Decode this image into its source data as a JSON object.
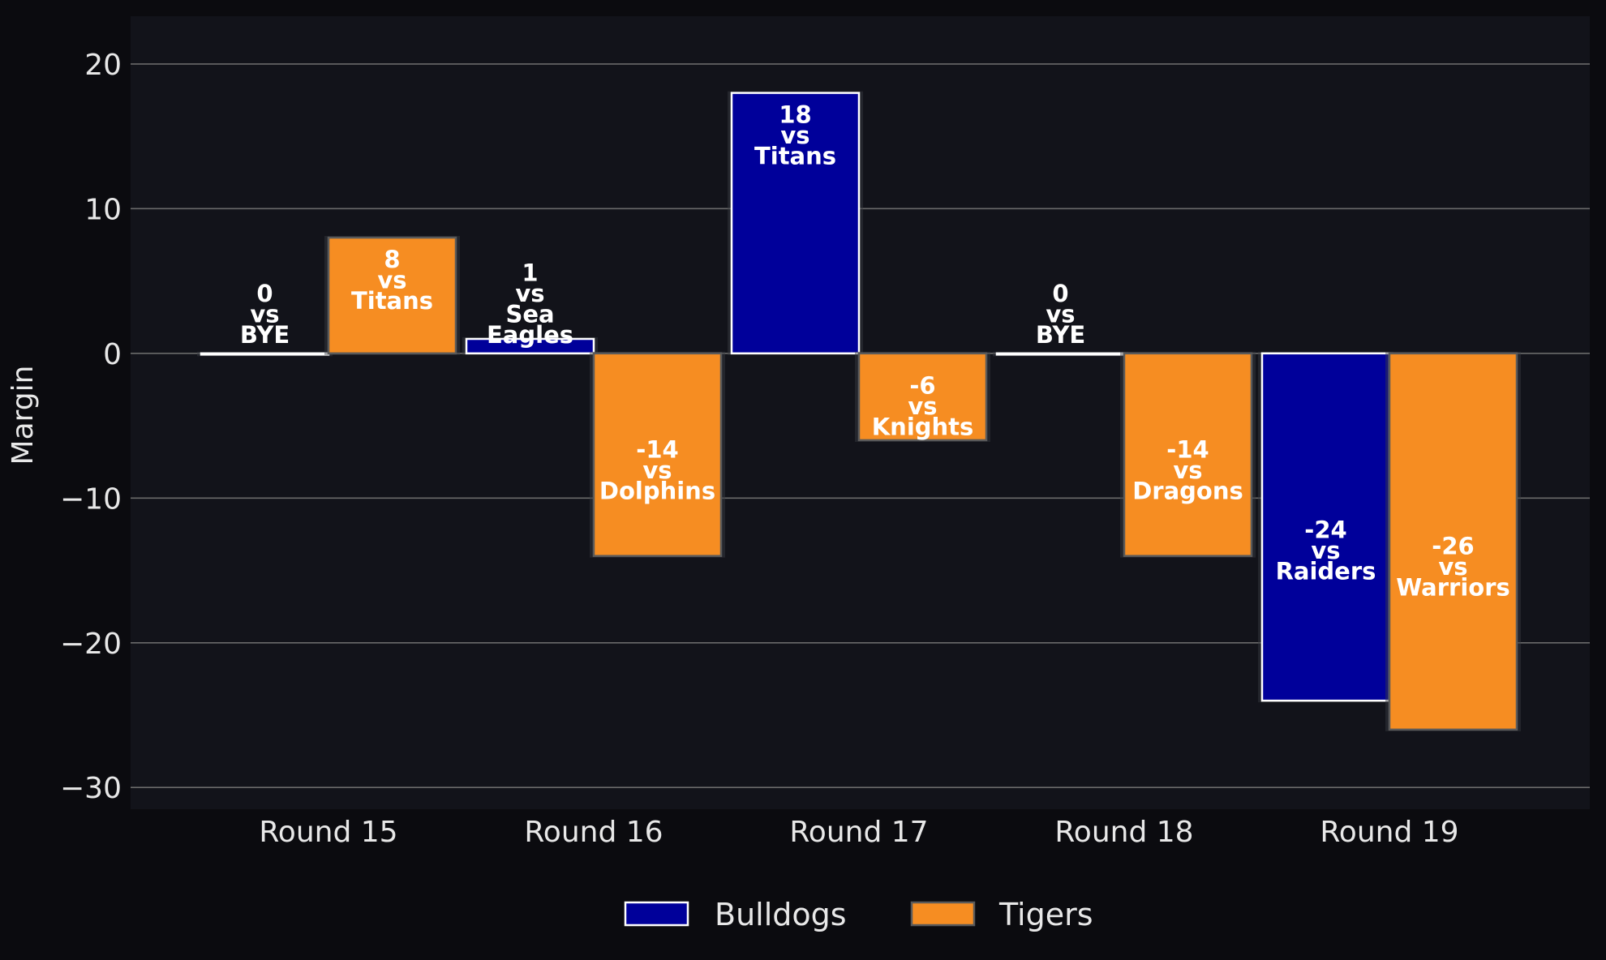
{
  "chart_data": {
    "type": "bar",
    "categories": [
      "Round 15",
      "Round 16",
      "Round 17",
      "Round 18",
      "Round 19"
    ],
    "series": [
      {
        "name": "Bulldogs",
        "color": "#00009a",
        "edge": "#ffffff",
        "values": [
          0,
          1,
          18,
          0,
          -24
        ],
        "opponents": [
          "BYE",
          "Sea Eagles",
          "Titans",
          "BYE",
          "Raiders"
        ],
        "labels": [
          [
            "0",
            "vs",
            "BYE"
          ],
          [
            "1",
            "vs",
            "Sea",
            "Eagles"
          ],
          [
            "18",
            "vs",
            "Titans"
          ],
          [
            "0",
            "vs",
            "BYE"
          ],
          [
            "-24",
            "vs",
            "Raiders"
          ]
        ]
      },
      {
        "name": "Tigers",
        "color": "#f68d22",
        "edge": "#5a5a5a",
        "values": [
          8,
          -14,
          -6,
          -14,
          -26
        ],
        "opponents": [
          "Titans",
          "Dolphins",
          "Knights",
          "Dragons",
          "Warriors"
        ],
        "labels": [
          [
            "8",
            "vs",
            "Titans"
          ],
          [
            "-14",
            "vs",
            "Dolphins"
          ],
          [
            "-6",
            "vs",
            "Knights"
          ],
          [
            "-14",
            "vs",
            "Dragons"
          ],
          [
            "-26",
            "vs",
            "Warriors"
          ]
        ]
      }
    ],
    "ylabel": "Margin",
    "xlabel": "",
    "ylim": [
      -31.5,
      23.3
    ],
    "yticks": [
      20,
      10,
      0,
      -10,
      -20,
      -30
    ],
    "ytick_labels": [
      "20",
      "10",
      "0",
      "−10",
      "−20",
      "−30"
    ],
    "grid": "horizontal",
    "legend_position": "bottom-center",
    "colors": {
      "background": "#0b0b0f",
      "plot_background": "#12131a",
      "grid": "#6a6a6a",
      "text": "#e8e8e8"
    }
  }
}
